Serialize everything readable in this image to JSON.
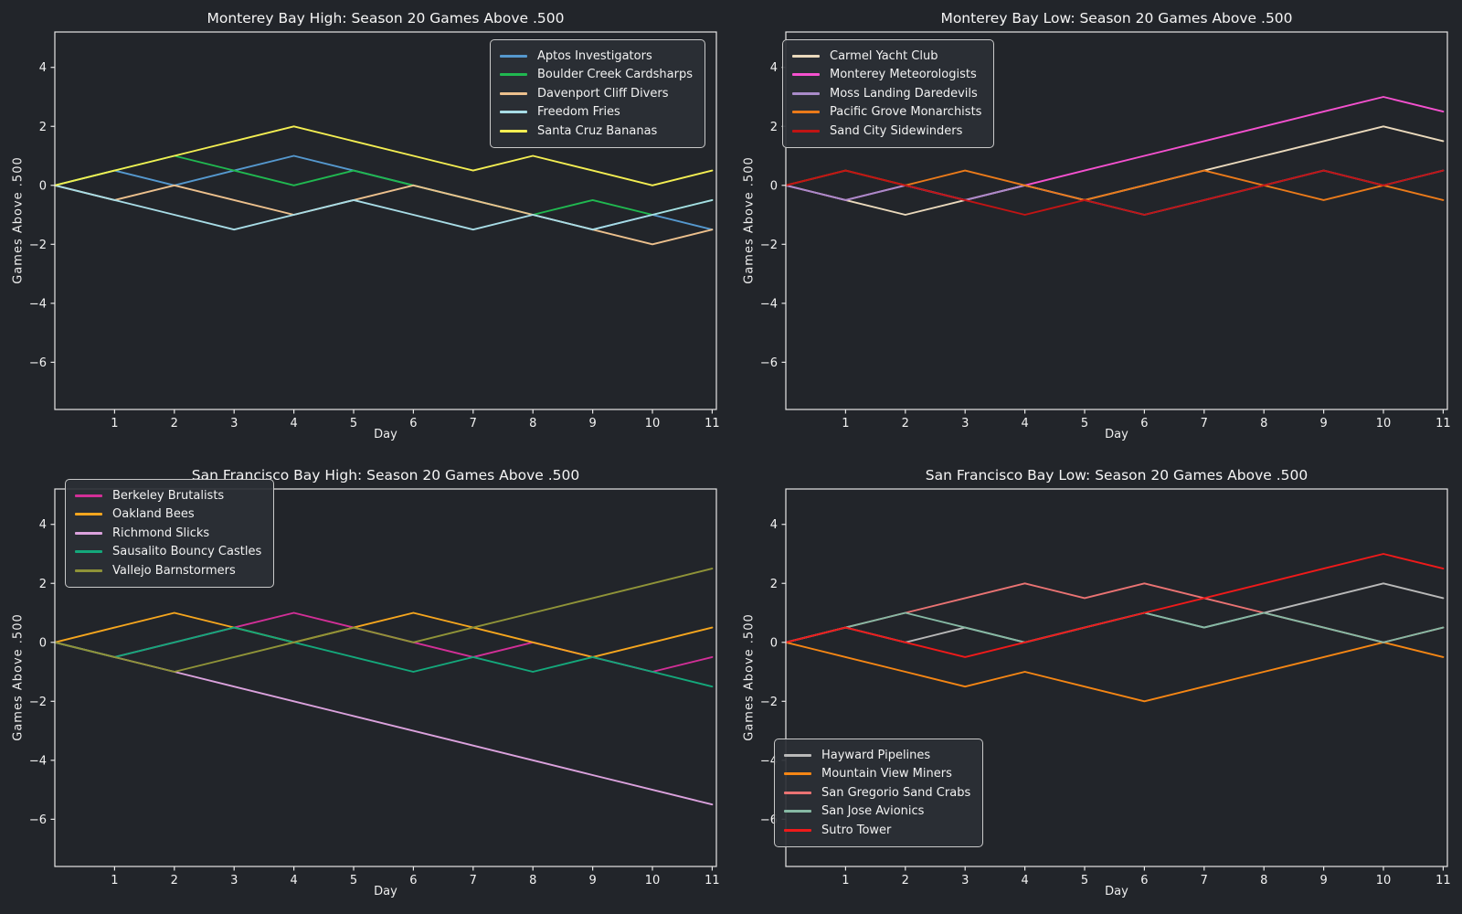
{
  "figure": {
    "background": "#22252a",
    "text_color": "#f2f2f2",
    "spine_color": "#e6e6e6",
    "legend_bg": "#2b2f35",
    "legend_border": "#c9c9c9"
  },
  "chart_data": [
    {
      "type": "line",
      "title": "Monterey Bay High: Season 20 Games Above .500",
      "xlabel": "Day",
      "ylabel": "Games Above .500",
      "x": [
        0,
        1,
        2,
        3,
        4,
        5,
        6,
        7,
        8,
        9,
        10,
        11
      ],
      "xticks": [
        1,
        2,
        3,
        4,
        5,
        6,
        7,
        8,
        9,
        10,
        11
      ],
      "yticks": [
        4,
        2,
        0,
        -2,
        -4,
        -6
      ],
      "xlim": [
        0,
        11.07
      ],
      "ylim": [
        -7.6,
        5.2
      ],
      "grid": false,
      "legend_position": "upper-right",
      "series": [
        {
          "name": "Aptos Investigators",
          "color": "#5598ce",
          "values": [
            0,
            0.5,
            0,
            0.5,
            1,
            0.5,
            0,
            -0.5,
            -1,
            -1.5,
            -1,
            -1.5
          ]
        },
        {
          "name": "Boulder Creek Cardsharps",
          "color": "#20b850",
          "values": [
            0,
            0.5,
            1,
            0.5,
            0,
            0.5,
            0,
            -0.5,
            -1,
            -0.5,
            -1,
            -0.5
          ]
        },
        {
          "name": "Davenport Cliff Divers",
          "color": "#ecc08d",
          "values": [
            0,
            -0.5,
            0,
            -0.5,
            -1,
            -0.5,
            0,
            -0.5,
            -1,
            -1.5,
            -2,
            -1.5
          ]
        },
        {
          "name": "Freedom Fries",
          "color": "#a8dce6",
          "values": [
            0,
            -0.5,
            -1,
            -1.5,
            -1,
            -0.5,
            -1,
            -1.5,
            -1,
            -1.5,
            -1,
            -0.5
          ]
        },
        {
          "name": "Santa Cruz Bananas",
          "color": "#f3ee52",
          "values": [
            0,
            0.5,
            1,
            1.5,
            2,
            1.5,
            1,
            0.5,
            1,
            0.5,
            0,
            0.5
          ]
        }
      ]
    },
    {
      "type": "line",
      "title": "Monterey Bay Low: Season 20 Games Above .500",
      "xlabel": "Day",
      "ylabel": "Games Above .500",
      "x": [
        0,
        1,
        2,
        3,
        4,
        5,
        6,
        7,
        8,
        9,
        10,
        11
      ],
      "xticks": [
        1,
        2,
        3,
        4,
        5,
        6,
        7,
        8,
        9,
        10,
        11
      ],
      "yticks": [
        4,
        2,
        0,
        -2,
        -4,
        -6
      ],
      "xlim": [
        0,
        11.07
      ],
      "ylim": [
        -7.6,
        5.2
      ],
      "grid": false,
      "legend_position": "upper-left",
      "series": [
        {
          "name": "Carmel Yacht Club",
          "color": "#ead9bc",
          "values": [
            0,
            -0.5,
            -1,
            -0.5,
            0,
            -0.5,
            0,
            0.5,
            1,
            1.5,
            2,
            1.5
          ]
        },
        {
          "name": "Monterey Meteorologists",
          "color": "#f551cf",
          "values": [
            0,
            -0.5,
            0,
            -0.5,
            0,
            0.5,
            1,
            1.5,
            2,
            2.5,
            3,
            2.5
          ]
        },
        {
          "name": "Moss Landing Daredevils",
          "color": "#a98bc9",
          "values": [
            0,
            -0.5,
            0,
            -0.5,
            0,
            -0.5,
            -1,
            -0.5,
            0,
            0.5,
            0,
            0.5
          ]
        },
        {
          "name": "Pacific Grove Monarchists",
          "color": "#ea7a1a",
          "values": [
            0,
            0.5,
            0,
            0.5,
            0,
            -0.5,
            0,
            0.5,
            0,
            -0.5,
            0,
            -0.5
          ]
        },
        {
          "name": "Sand City Sidewinders",
          "color": "#c11414",
          "values": [
            0,
            0.5,
            0,
            -0.5,
            -1,
            -0.5,
            -1,
            -0.5,
            0,
            0.5,
            0,
            0.5
          ]
        }
      ]
    },
    {
      "type": "line",
      "title": "San Francisco Bay High: Season 20 Games Above .500",
      "xlabel": "Day",
      "ylabel": "Games Above .500",
      "x": [
        0,
        1,
        2,
        3,
        4,
        5,
        6,
        7,
        8,
        9,
        10,
        11
      ],
      "xticks": [
        1,
        2,
        3,
        4,
        5,
        6,
        7,
        8,
        9,
        10,
        11
      ],
      "yticks": [
        4,
        2,
        0,
        -2,
        -4,
        -6
      ],
      "xlim": [
        0,
        11.07
      ],
      "ylim": [
        -7.6,
        5.2
      ],
      "grid": false,
      "legend_position": "upper-left",
      "series": [
        {
          "name": "Berkeley Brutalists",
          "color": "#d22f97",
          "values": [
            0,
            -0.5,
            0,
            0.5,
            1,
            0.5,
            0,
            -0.5,
            0,
            -0.5,
            -1,
            -0.5
          ]
        },
        {
          "name": "Oakland Bees",
          "color": "#f6a61e",
          "values": [
            0,
            0.5,
            1,
            0.5,
            0,
            0.5,
            1,
            0.5,
            0,
            -0.5,
            0,
            0.5
          ]
        },
        {
          "name": "Richmond Slicks",
          "color": "#dba2dd",
          "values": [
            0,
            -0.5,
            -1,
            -1.5,
            -2,
            -2.5,
            -3,
            -3.5,
            -4,
            -4.5,
            -5,
            -5.5
          ]
        },
        {
          "name": "Sausalito Bouncy Castles",
          "color": "#14a87b",
          "values": [
            0,
            -0.5,
            0,
            0.5,
            0,
            -0.5,
            -1,
            -0.5,
            -1,
            -0.5,
            -1,
            -1.5
          ]
        },
        {
          "name": "Vallejo Barnstormers",
          "color": "#8f9338",
          "values": [
            0,
            -0.5,
            -1,
            -0.5,
            0,
            0.5,
            0,
            0.5,
            1,
            1.5,
            2,
            2.5
          ]
        }
      ]
    },
    {
      "type": "line",
      "title": "San Francisco Bay Low: Season 20 Games Above .500",
      "xlabel": "Day",
      "ylabel": "Games Above .500",
      "x": [
        0,
        1,
        2,
        3,
        4,
        5,
        6,
        7,
        8,
        9,
        10,
        11
      ],
      "xticks": [
        1,
        2,
        3,
        4,
        5,
        6,
        7,
        8,
        9,
        10,
        11
      ],
      "yticks": [
        4,
        2,
        0,
        -2,
        -4,
        -6
      ],
      "xlim": [
        0,
        11.07
      ],
      "ylim": [
        -7.6,
        5.2
      ],
      "grid": false,
      "legend_position": "lower-left",
      "series": [
        {
          "name": "Hayward Pipelines",
          "color": "#b9b9b9",
          "values": [
            0,
            0.5,
            0,
            0.5,
            0,
            0.5,
            1,
            0.5,
            1,
            1.5,
            2,
            1.5
          ]
        },
        {
          "name": "Mountain View Miners",
          "color": "#f58614",
          "values": [
            0,
            -0.5,
            -1,
            -1.5,
            -1,
            -1.5,
            -2,
            -1.5,
            -1,
            -0.5,
            0,
            -0.5
          ]
        },
        {
          "name": "San Gregorio Sand Crabs",
          "color": "#ea7373",
          "values": [
            0,
            0.5,
            1,
            1.5,
            2,
            1.5,
            2,
            1.5,
            1,
            0.5,
            0,
            0.5
          ]
        },
        {
          "name": "San Jose Avionics",
          "color": "#86b9a4",
          "values": [
            0,
            0.5,
            1,
            0.5,
            0,
            0.5,
            1,
            0.5,
            1,
            0.5,
            0,
            0.5
          ]
        },
        {
          "name": "Sutro Tower",
          "color": "#ef1a1a",
          "values": [
            0,
            0.5,
            0,
            -0.5,
            0,
            0.5,
            1,
            1.5,
            2,
            2.5,
            3,
            2.5
          ]
        }
      ]
    }
  ]
}
